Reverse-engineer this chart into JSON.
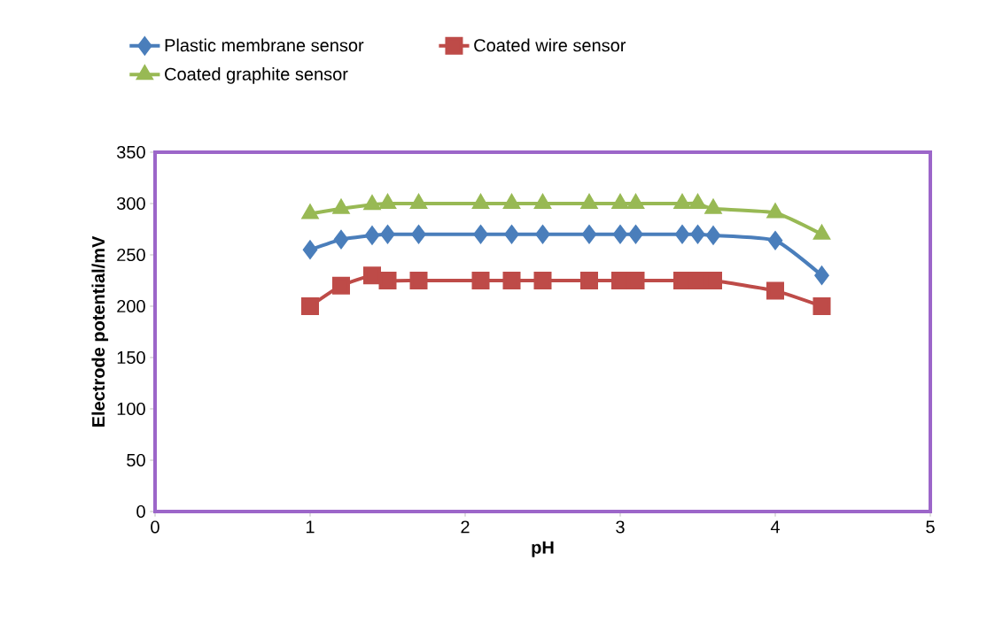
{
  "chart_data": {
    "type": "line",
    "xlabel": "pH",
    "ylabel": "Electrode potential/mV",
    "x": [
      1,
      1.2,
      1.4,
      1.5,
      1.7,
      2.1,
      2.3,
      2.5,
      2.8,
      3.0,
      3.1,
      3.4,
      3.5,
      3.6,
      4.0,
      4.3
    ],
    "series": [
      {
        "name": "Plastic membrane sensor",
        "color": "#4a7ebb",
        "marker": "diamond",
        "values": [
          255,
          265,
          269,
          270,
          270,
          270,
          270,
          270,
          270,
          270,
          270,
          270,
          270,
          269,
          264,
          230
        ]
      },
      {
        "name": "Coated wire sensor",
        "color": "#be4b48",
        "marker": "square",
        "values": [
          200,
          220,
          230,
          225,
          225,
          225,
          225,
          225,
          225,
          225,
          225,
          225,
          225,
          225,
          215,
          200
        ]
      },
      {
        "name": "Coated graphite sensor",
        "color": "#98b954",
        "marker": "triangle",
        "values": [
          290,
          295,
          299,
          300,
          300,
          300,
          300,
          300,
          300,
          300,
          300,
          300,
          300,
          295,
          291,
          270
        ]
      }
    ],
    "xlim": [
      0,
      5
    ],
    "xticks": [
      0,
      1,
      2,
      3,
      4,
      5
    ],
    "ylim": [
      0,
      350
    ],
    "yticks": [
      0,
      50,
      100,
      150,
      200,
      250,
      300,
      350
    ],
    "grid": false,
    "legend": "top",
    "line_style": "solid"
  }
}
